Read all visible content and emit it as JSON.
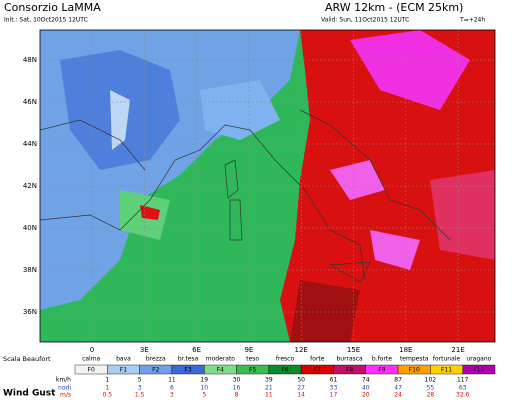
{
  "header": {
    "org": "Consorzio LaMMA",
    "model": "ARW 12km - (ECM 25km)",
    "init": "Init.: Sat, 10Oct2015 12UTC",
    "valid": "Valid: Sun, 11Oct2015 12UTC",
    "lead": "T=+24h"
  },
  "map": {
    "lat_labels": [
      "48N",
      "46N",
      "44N",
      "42N",
      "40N",
      "38N",
      "36N"
    ],
    "lon_labels": [
      "0",
      "3E",
      "6E",
      "9E",
      "12E",
      "15E",
      "18E",
      "21E"
    ]
  },
  "legend": {
    "scale_title": "Scala Beaufort",
    "field": "Wind Gust",
    "names": [
      "calma",
      "bava",
      "brezza",
      "br.tesa",
      "moderato",
      "teso",
      "fresco",
      "forte",
      "burrasca",
      "b.forte",
      "tempesta",
      "fortunale",
      "uragano"
    ],
    "classes": [
      "F0",
      "F1",
      "F2",
      "F3",
      "F4",
      "F5",
      "F6",
      "F7",
      "F8",
      "F9",
      "F10",
      "F11",
      "F12"
    ],
    "units": [
      "km/h",
      "nodi",
      "m/s"
    ],
    "kmh": [
      1,
      5,
      11,
      19,
      30,
      39,
      50,
      61,
      74,
      87,
      102,
      117
    ],
    "knots": [
      1,
      3,
      6,
      10,
      16,
      21,
      27,
      33,
      40,
      47,
      55,
      63
    ],
    "ms": [
      0.5,
      1.5,
      3,
      5,
      8,
      11,
      14,
      17,
      20,
      24,
      28,
      32.6
    ]
  }
}
